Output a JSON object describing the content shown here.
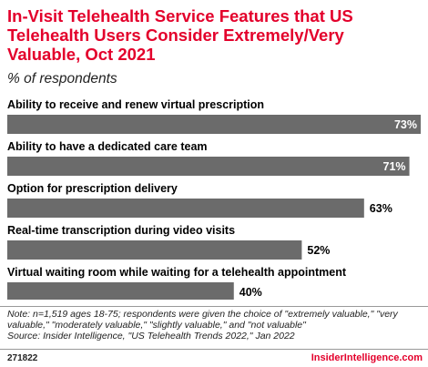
{
  "chart_data": {
    "type": "bar",
    "orientation": "horizontal",
    "title": "In-Visit Telehealth Service Features that US Telehealth Users Consider Extremely/Very Valuable, Oct 2021",
    "subtitle": "% of respondents",
    "categories": [
      "Ability to receive and renew virtual prescription",
      "Ability to have a dedicated care team",
      "Option for prescription delivery",
      "Real-time transcription during video visits",
      "Virtual waiting room while waiting for a telehealth appointment"
    ],
    "values": [
      73,
      71,
      63,
      52,
      40
    ],
    "value_labels": [
      "73%",
      "71%",
      "63%",
      "52%",
      "40%"
    ],
    "xlim": [
      0,
      73
    ],
    "grid": false,
    "legend": "none"
  },
  "footer": {
    "note": "Note: n=1,519 ages 18-75; respondents were given the choice of \"extremely valuable,\" \"very valuable,\" \"moderately valuable,\" \"slightly valuable,\" and \"not valuable\"",
    "source": "Source: Insider Intelligence, \"US Telehealth Trends 2022,\" Jan 2022",
    "chart_id": "271822",
    "brand": "InsiderIntelligence.com"
  },
  "colors": {
    "title": "#e3002b",
    "bar": "#6b6b6b",
    "brand": "#e3002b"
  }
}
